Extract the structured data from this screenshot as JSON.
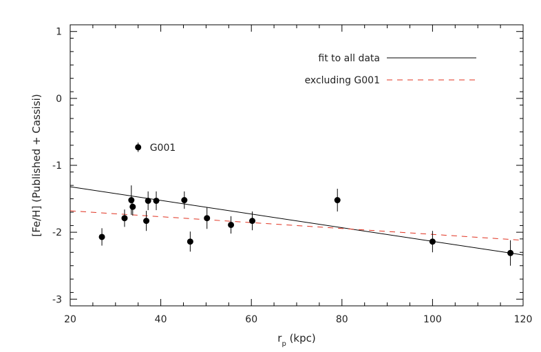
{
  "chart_data": {
    "type": "scatter",
    "xlabel": {
      "main": "r",
      "sub": "p",
      "suffix": " (kpc)"
    },
    "ylabel": "[Fe/H] (Published + Cassisi)",
    "xlim": [
      20,
      120
    ],
    "ylim": [
      -3.1,
      1.1
    ],
    "xticks": [
      20,
      40,
      60,
      80,
      100,
      120
    ],
    "yticks": [
      -3,
      -2,
      -1,
      0,
      1
    ],
    "grid": false,
    "legend_position": "top-right",
    "series": [
      {
        "type": "scatter",
        "color": "#000000",
        "x": [
          27,
          32,
          33.5,
          33.8,
          35,
          36.8,
          37.2,
          39,
          45.2,
          46.5,
          50.2,
          55.5,
          60.2,
          79,
          100,
          117.2
        ],
        "y": [
          -2.07,
          -1.79,
          -1.52,
          -1.62,
          -0.73,
          -1.83,
          -1.53,
          -1.53,
          -1.52,
          -2.14,
          -1.79,
          -1.89,
          -1.83,
          -1.52,
          -2.14,
          -2.31
        ],
        "yerr": [
          0.13,
          0.13,
          0.22,
          0.13,
          0.07,
          0.15,
          0.14,
          0.14,
          0.13,
          0.15,
          0.16,
          0.13,
          0.14,
          0.17,
          0.16,
          0.19
        ]
      },
      {
        "name": "fit to all data",
        "type": "line",
        "color": "#000000",
        "dash": "solid",
        "x": [
          20,
          120
        ],
        "y": [
          -1.32,
          -2.34
        ]
      },
      {
        "name": "excluding G001",
        "type": "line",
        "color": "#e0301e",
        "dash": "dashed",
        "x": [
          20,
          120
        ],
        "y": [
          -1.68,
          -2.12
        ]
      }
    ],
    "annotations": [
      {
        "text": "G001",
        "x": 35,
        "y": -0.73
      }
    ]
  }
}
